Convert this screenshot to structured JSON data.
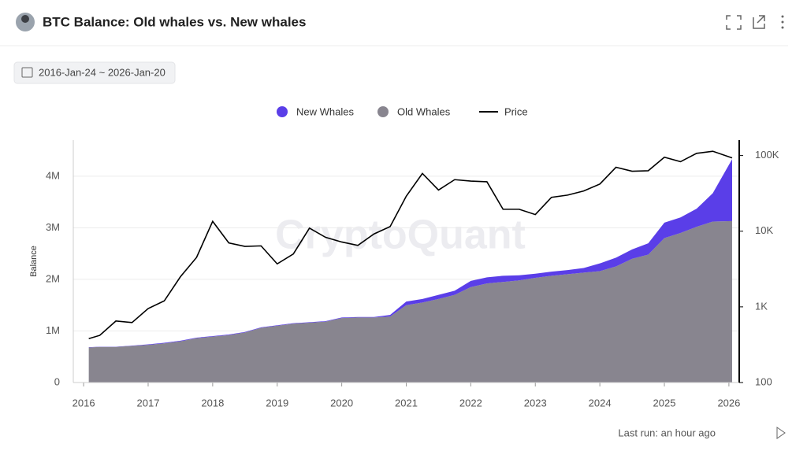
{
  "header": {
    "title": "BTC Balance: Old whales vs. New whales",
    "date_range": "2016-Jan-24 ~ 2026-Jan-20"
  },
  "footer": {
    "last_run": "Last run: an hour ago"
  },
  "chart_data": {
    "type": "stacked-area-line",
    "watermark": "CryptoQuant",
    "y_label": "Balance",
    "x": [
      2016.08,
      2016.25,
      2016.5,
      2016.75,
      2017,
      2017.25,
      2017.5,
      2017.75,
      2018,
      2018.25,
      2018.5,
      2018.75,
      2019,
      2019.25,
      2019.5,
      2019.75,
      2020,
      2020.25,
      2020.5,
      2020.75,
      2021,
      2021.25,
      2021.5,
      2021.75,
      2022,
      2022.25,
      2022.5,
      2022.75,
      2023,
      2023.25,
      2023.5,
      2023.75,
      2024,
      2024.25,
      2024.5,
      2024.75,
      2025,
      2025.25,
      2025.5,
      2025.75,
      2026.05
    ],
    "xlim": [
      2015.84,
      2026.16
    ],
    "xticks": [
      2016,
      2017,
      2018,
      2019,
      2020,
      2021,
      2022,
      2023,
      2024,
      2025,
      2026
    ],
    "ylim": [
      0,
      4700000
    ],
    "yticks": [
      0,
      {
        "value": 1000000,
        "label": "1M"
      },
      {
        "value": 2000000,
        "label": "2M"
      },
      {
        "value": 3000000,
        "label": "3M"
      },
      {
        "value": 4000000,
        "label": "4M"
      }
    ],
    "y2lim": [
      100,
      160000
    ],
    "y2ticks": [
      100,
      {
        "value": 1000,
        "label": "1K"
      },
      {
        "value": 10000,
        "label": "10K"
      },
      {
        "value": 100000,
        "label": "100K"
      }
    ],
    "y2_log": true,
    "grid": true,
    "series": [
      {
        "name": "Old Whales",
        "color": "#88858f",
        "kind": "area",
        "values": [
          680000,
          690000,
          690000,
          710000,
          730000,
          760000,
          800000,
          860000,
          890000,
          920000,
          970000,
          1060000,
          1100000,
          1140000,
          1160000,
          1180000,
          1250000,
          1260000,
          1260000,
          1280000,
          1500000,
          1550000,
          1620000,
          1700000,
          1850000,
          1920000,
          1950000,
          1980000,
          2030000,
          2070000,
          2100000,
          2130000,
          2160000,
          2250000,
          2400000,
          2480000,
          2800000,
          2900000,
          3020000,
          3120000,
          3130000
        ]
      },
      {
        "name": "New Whales",
        "color": "#5a3ee8",
        "kind": "area",
        "values": [
          5000,
          5000,
          5000,
          5000,
          10000,
          10000,
          10000,
          10000,
          10000,
          10000,
          10000,
          10000,
          10000,
          10000,
          10000,
          10000,
          10000,
          10000,
          10000,
          30000,
          70000,
          70000,
          80000,
          80000,
          120000,
          120000,
          120000,
          100000,
          80000,
          80000,
          80000,
          90000,
          150000,
          170000,
          180000,
          220000,
          300000,
          300000,
          350000,
          550000,
          1200000
        ]
      },
      {
        "name": "Price",
        "color": "#000000",
        "kind": "line",
        "axis": "y2",
        "values": [
          380,
          420,
          650,
          620,
          950,
          1200,
          2500,
          4500,
          13500,
          7000,
          6300,
          6400,
          3700,
          5000,
          11000,
          8300,
          7200,
          6500,
          9200,
          11500,
          29000,
          58000,
          35000,
          48000,
          46000,
          45000,
          19500,
          19500,
          16600,
          28000,
          30000,
          34000,
          42000,
          70000,
          62000,
          63000,
          95000,
          83000,
          107000,
          114000,
          93000
        ]
      }
    ],
    "legend_order": [
      1,
      0,
      2
    ]
  }
}
